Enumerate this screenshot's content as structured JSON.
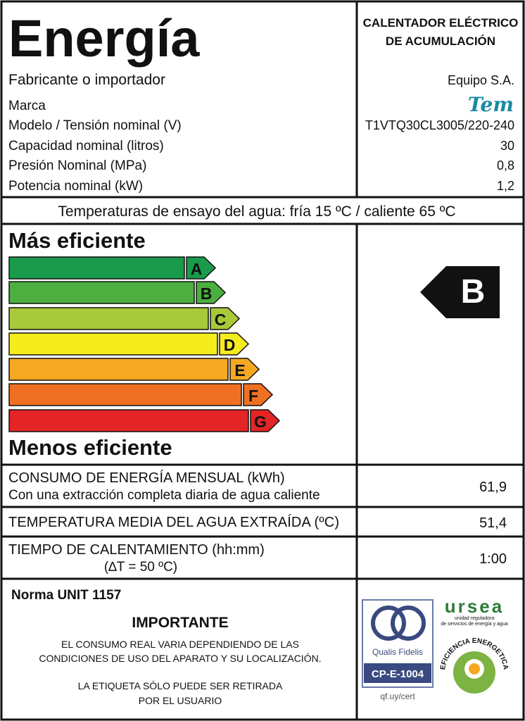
{
  "header": {
    "title": "Energía",
    "product_type": [
      "CALENTADOR ELÉCTRICO",
      "DE ACUMULACIÓN"
    ]
  },
  "specs": [
    {
      "label": "Fabricante o importador",
      "value": "Equipo S.A."
    },
    {
      "label": "Marca",
      "value": "Tem"
    },
    {
      "label": "Modelo / Tensión nominal (V)",
      "value": "T1VTQ30CL3005/220-240"
    },
    {
      "label": "Capacidad nominal (litros)",
      "value": "30"
    },
    {
      "label": "Presión Nominal (MPa)",
      "value": "0,8"
    },
    {
      "label": "Potencia nominal (kW)",
      "value": "1,2"
    }
  ],
  "test_temperatures": "Temperaturas de ensayo del agua: fría 15 ºC / caliente 65 ºC",
  "scale": {
    "top_label": "Más eficiente",
    "bottom_label": "Menos eficiente",
    "classes": [
      {
        "letter": "A",
        "color": "#1a9a4b"
      },
      {
        "letter": "B",
        "color": "#4caf3f"
      },
      {
        "letter": "C",
        "color": "#a8c93a"
      },
      {
        "letter": "D",
        "color": "#f5ec1c"
      },
      {
        "letter": "E",
        "color": "#f7a823"
      },
      {
        "letter": "F",
        "color": "#f07023"
      },
      {
        "letter": "G",
        "color": "#e32526"
      }
    ],
    "rating": "B"
  },
  "measurements": [
    {
      "lines": [
        "CONSUMO DE ENERGÍA MENSUAL (kWh)",
        "Con una extracción completa diaria de agua caliente"
      ],
      "value": "61,9"
    },
    {
      "lines": [
        "TEMPERATURA MEDIA DEL AGUA EXTRAÍDA (ºC)"
      ],
      "value": "51,4"
    },
    {
      "lines": [
        "TIEMPO DE CALENTAMIENTO (hh:mm)",
        "(∆T = 50 ºC)"
      ],
      "value": "1:00"
    }
  ],
  "footer": {
    "standard": "Norma UNIT 1157",
    "important_title": "IMPORTANTE",
    "notice_1": [
      "EL CONSUMO REAL VARIA DEPENDIENDO DE LAS",
      "CONDICIONES DE USO DEL APARATO Y SU LOCALIZACIÓN."
    ],
    "notice_2": [
      "LA ETIQUETA SÓLO PUEDE SER RETIRADA",
      "POR EL USUARIO"
    ]
  },
  "logos": {
    "qualis": "Qualis Fidelis",
    "cert_code": "CP-E-1004",
    "cert_url": "qf.uy/cert",
    "ursea": "ursea",
    "ursea_sub": [
      "unidad reguladora",
      "de servicios de energía y agua"
    ],
    "efficiency": "EFICIENCIA ENERGETICA"
  }
}
